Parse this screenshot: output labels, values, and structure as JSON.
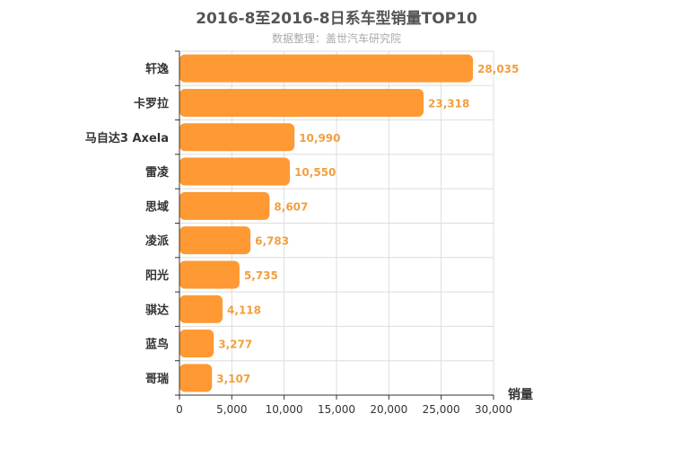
{
  "title": "2016-8至2016-8日系车型销量TOP10",
  "subtitle": "数据整理：盖世汽车研究院",
  "colors": {
    "bar": "#ff9933",
    "label": "#f0a040",
    "axis": "#333333",
    "grid": "#dddddd",
    "title": "#555555",
    "subtitle": "#aaaaaa"
  },
  "chart_data": {
    "type": "bar",
    "orientation": "horizontal",
    "title": "2016-8至2016-8日系车型销量TOP10",
    "subtitle": "数据整理：盖世汽车研究院",
    "xlabel": "销量",
    "ylabel": "",
    "xlim": [
      0,
      30000
    ],
    "x_ticks": [
      "0",
      "5,000",
      "10,000",
      "15,000",
      "20,000",
      "25,000",
      "30,000"
    ],
    "grid": true,
    "categories": [
      "轩逸",
      "卡罗拉",
      "马自达3 Axela",
      "雷凌",
      "思域",
      "凌派",
      "阳光",
      "骐达",
      "蓝鸟",
      "哥瑞"
    ],
    "values": [
      28035,
      23318,
      10990,
      10550,
      8607,
      6783,
      5735,
      4118,
      3277,
      3107
    ],
    "value_labels": [
      "28,035",
      "23,318",
      "10,990",
      "10,550",
      "8,607",
      "6,783",
      "5,735",
      "4,118",
      "3,277",
      "3,107"
    ]
  }
}
